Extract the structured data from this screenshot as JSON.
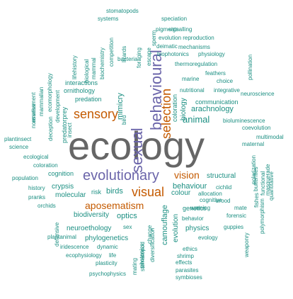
{
  "colors": {
    "teal": "#1b8f82",
    "orange": "#c45a00",
    "purple": "#6b65aa",
    "gray": "#666666"
  },
  "words": [
    {
      "text": "ecology",
      "color": "gray"
    },
    {
      "text": "evolutionary",
      "color": "purple"
    },
    {
      "text": "sexual",
      "color": "purple"
    },
    {
      "text": "behavioural",
      "color": "purple"
    },
    {
      "text": "selection",
      "color": "orange"
    },
    {
      "text": "sensory",
      "color": "orange"
    },
    {
      "text": "visual",
      "color": "orange"
    },
    {
      "text": "aposematism",
      "color": "orange"
    },
    {
      "text": "vision",
      "color": "orange"
    },
    {
      "text": "animal",
      "color": "teal"
    },
    {
      "text": "camouflage",
      "color": "teal"
    },
    {
      "text": "evolution",
      "color": "teal"
    },
    {
      "text": "behaviour",
      "color": "teal"
    },
    {
      "text": "colour",
      "color": "teal"
    },
    {
      "text": "birds",
      "color": "teal"
    },
    {
      "text": "optics",
      "color": "teal"
    },
    {
      "text": "crypsis",
      "color": "teal"
    },
    {
      "text": "molecular",
      "color": "teal"
    },
    {
      "text": "structural",
      "color": "teal"
    },
    {
      "text": "biodiversity",
      "color": "teal"
    },
    {
      "text": "neuroethology",
      "color": "teal"
    },
    {
      "text": "phylogenetics",
      "color": "teal"
    },
    {
      "text": "genetics",
      "color": "teal"
    },
    {
      "text": "physics",
      "color": "teal"
    },
    {
      "text": "arachnology",
      "color": "teal"
    },
    {
      "text": "communication",
      "color": "teal"
    },
    {
      "text": "biology",
      "color": "teal"
    },
    {
      "text": "mimicry",
      "color": "teal"
    },
    {
      "text": "coloration",
      "color": "teal"
    },
    {
      "text": "interactions",
      "color": "teal"
    },
    {
      "text": "ornithology",
      "color": "teal"
    },
    {
      "text": "predation",
      "color": "teal"
    },
    {
      "text": "predatorprey",
      "color": "teal"
    },
    {
      "text": "cognition",
      "color": "teal"
    },
    {
      "text": "risk",
      "color": "teal"
    },
    {
      "text": "stomatopods",
      "color": "teal"
    },
    {
      "text": "speciation",
      "color": "teal"
    },
    {
      "text": "systems",
      "color": "teal"
    },
    {
      "text": "signalling",
      "color": "teal"
    },
    {
      "text": "pigments",
      "color": "teal"
    },
    {
      "text": "evolution reproduction",
      "color": "teal"
    },
    {
      "text": "deimatic",
      "color": "teal"
    },
    {
      "text": "mechanisms",
      "color": "teal"
    },
    {
      "text": "biophotonics",
      "color": "teal"
    },
    {
      "text": "physiology",
      "color": "teal"
    },
    {
      "text": "bacteria",
      "color": "teal"
    },
    {
      "text": "thermoregulation",
      "color": "teal"
    },
    {
      "text": "feathers",
      "color": "teal"
    },
    {
      "text": "marine",
      "color": "teal"
    },
    {
      "text": "choice",
      "color": "teal"
    },
    {
      "text": "nutritional",
      "color": "teal"
    },
    {
      "text": "integrative",
      "color": "teal"
    },
    {
      "text": "neuroscience",
      "color": "teal"
    },
    {
      "text": "bioluminescence",
      "color": "teal"
    },
    {
      "text": "coevolution",
      "color": "teal"
    },
    {
      "text": "multimodal",
      "color": "teal"
    },
    {
      "text": "maternal",
      "color": "teal"
    },
    {
      "text": "plantinsect",
      "color": "teal"
    },
    {
      "text": "science",
      "color": "teal"
    },
    {
      "text": "ecological",
      "color": "teal"
    },
    {
      "text": "coloration",
      "color": "teal"
    },
    {
      "text": "population",
      "color": "teal"
    },
    {
      "text": "history",
      "color": "teal"
    },
    {
      "text": "pranks",
      "color": "teal"
    },
    {
      "text": "orchids",
      "color": "teal"
    },
    {
      "text": "cichlid",
      "color": "teal"
    },
    {
      "text": "allocation",
      "color": "teal"
    },
    {
      "text": "cognitive",
      "color": "teal"
    },
    {
      "text": "brood",
      "color": "teal"
    },
    {
      "text": "warning",
      "color": "teal"
    },
    {
      "text": "mate",
      "color": "teal"
    },
    {
      "text": "behavior",
      "color": "teal"
    },
    {
      "text": "forensic",
      "color": "teal"
    },
    {
      "text": "guppies",
      "color": "teal"
    },
    {
      "text": "evology",
      "color": "teal"
    },
    {
      "text": "ethics",
      "color": "teal"
    },
    {
      "text": "shrimp",
      "color": "teal"
    },
    {
      "text": "effects",
      "color": "teal"
    },
    {
      "text": "parasites",
      "color": "teal"
    },
    {
      "text": "symbioses",
      "color": "teal"
    },
    {
      "text": "plantanimal",
      "color": "teal"
    },
    {
      "text": "iridescence",
      "color": "teal"
    },
    {
      "text": "dynamic",
      "color": "teal"
    },
    {
      "text": "ecophysiology",
      "color": "teal"
    },
    {
      "text": "life",
      "color": "teal"
    },
    {
      "text": "plasticity",
      "color": "teal"
    },
    {
      "text": "psychophysics",
      "color": "teal"
    },
    {
      "text": "sex",
      "color": "teal"
    },
    {
      "text": "escape",
      "color": "teal"
    },
    {
      "text": "sperm",
      "color": "teal"
    },
    {
      "text": "lizards",
      "color": "teal"
    },
    {
      "text": "foraging",
      "color": "teal"
    },
    {
      "text": "competition",
      "color": "teal"
    },
    {
      "text": "biochemistry",
      "color": "teal"
    },
    {
      "text": "biological",
      "color": "teal"
    },
    {
      "text": "mammal",
      "color": "teal"
    },
    {
      "text": "lifehistory",
      "color": "teal"
    },
    {
      "text": "mammalian",
      "color": "teal"
    },
    {
      "text": "ecomorphology",
      "color": "teal"
    },
    {
      "text": "development",
      "color": "teal"
    },
    {
      "text": "assessment",
      "color": "teal"
    },
    {
      "text": "deception",
      "color": "teal"
    },
    {
      "text": "normative",
      "color": "teal"
    },
    {
      "text": "bird",
      "color": "teal"
    },
    {
      "text": "insect",
      "color": "teal"
    },
    {
      "text": "pollination",
      "color": "teal"
    },
    {
      "text": "polarization",
      "color": "teal"
    },
    {
      "text": "butterflies",
      "color": "teal"
    },
    {
      "text": "functional",
      "color": "teal"
    },
    {
      "text": "masquerade",
      "color": "teal"
    },
    {
      "text": "quantitative",
      "color": "teal"
    },
    {
      "text": "fishes",
      "color": "teal"
    },
    {
      "text": "polymorphism",
      "color": "teal"
    },
    {
      "text": "weaponry",
      "color": "teal"
    },
    {
      "text": "defensive",
      "color": "teal"
    },
    {
      "text": "stomatopod",
      "color": "teal"
    },
    {
      "text": "photonics",
      "color": "teal"
    },
    {
      "text": "diversification",
      "color": "teal"
    },
    {
      "text": "mating",
      "color": "teal"
    },
    {
      "text": "change",
      "color": "teal"
    }
  ]
}
